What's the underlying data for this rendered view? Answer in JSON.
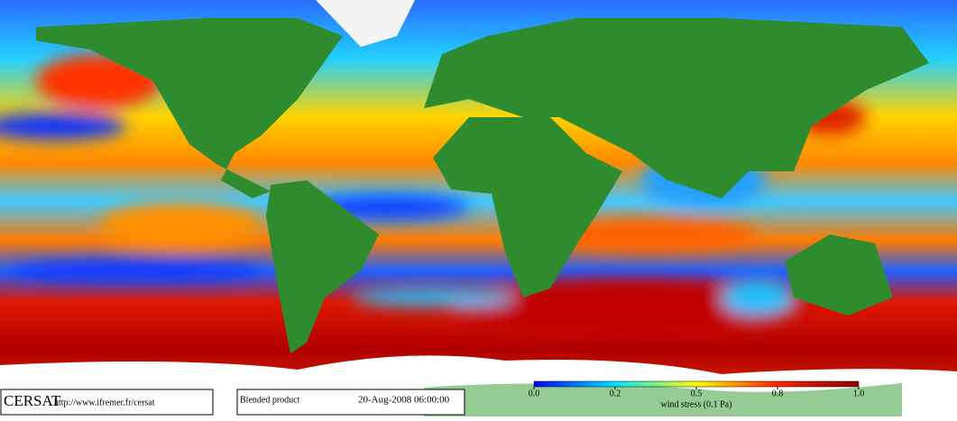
{
  "footer": {
    "logo": "CERSAT",
    "url": "http://www.ifremer.fr/cersat",
    "product": "Blended product",
    "timestamp": "20-Aug-2008 06:00:00"
  },
  "colorbar": {
    "label": "wind stress (0.1 Pa)",
    "colors": [
      "#0000ff",
      "#00e5ff",
      "#ffff00",
      "#ff2000",
      "#900000"
    ],
    "ticks": [
      {
        "value": 0,
        "label": "0.0"
      },
      0.2,
      0.5,
      0.8,
      {
        "value": 1,
        "label": "1.0"
      }
    ]
  }
}
